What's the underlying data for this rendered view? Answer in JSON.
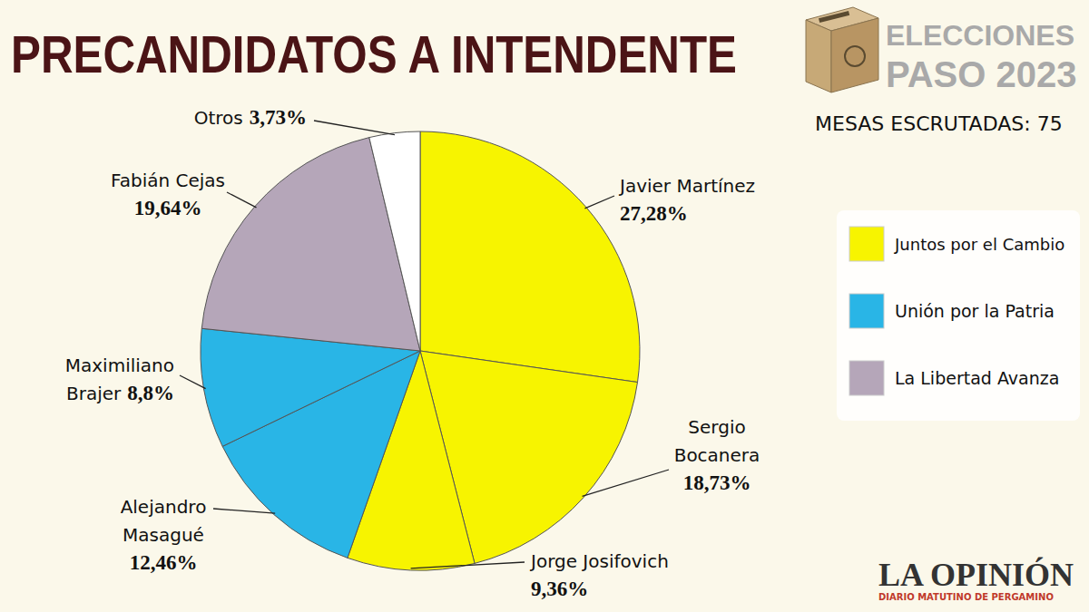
{
  "chart_data": {
    "type": "pie",
    "title": "PRECANDIDATOS A INTENDENTE",
    "labels": [
      "Javier Martínez",
      "Sergio Bocanera",
      "Jorge Josifovich",
      "Alejandro Masagué",
      "Maximiliano Brajer",
      "Fabián Cejas",
      "Otros"
    ],
    "values": [
      27.28,
      18.73,
      9.36,
      12.46,
      8.8,
      19.64,
      3.73
    ],
    "value_labels": [
      "27,28%",
      "18,73%",
      "9,36%",
      "12,46%",
      "8,8%",
      "19,64%",
      "3,73%"
    ],
    "colors": [
      "#f7f400",
      "#f7f400",
      "#f7f400",
      "#29b5e6",
      "#29b5e6",
      "#b5a6b9",
      "#ffffff"
    ],
    "groups": [
      {
        "name": "Juntos por el Cambio",
        "color": "#f7f400"
      },
      {
        "name": "Unión por la Patria",
        "color": "#29b5e6"
      },
      {
        "name": "La Libertad Avanza",
        "color": "#b5a6b9"
      }
    ],
    "legend": "right",
    "data_labels": true
  },
  "header": {
    "badge_line1": "ELECCIONES",
    "badge_line2": "PASO 2023",
    "mesas": "MESAS ESCRUTADAS: 75"
  },
  "footer": {
    "source": "LA OPINIÓN",
    "tagline": "DIARIO MATUTINO DE PERGAMINO"
  }
}
